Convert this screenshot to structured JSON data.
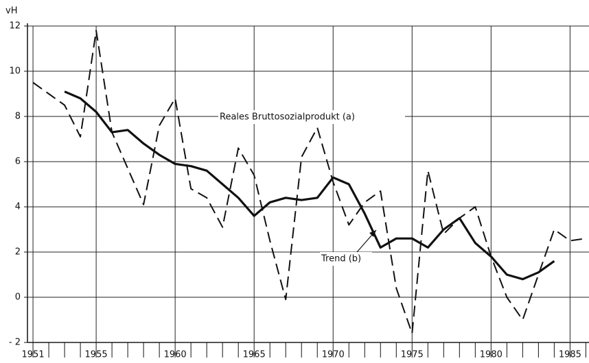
{
  "chart_data": {
    "type": "line",
    "y_label": "vH",
    "x": [
      1951,
      1952,
      1953,
      1954,
      1955,
      1956,
      1957,
      1958,
      1959,
      1960,
      1961,
      1962,
      1963,
      1964,
      1965,
      1966,
      1967,
      1968,
      1969,
      1970,
      1971,
      1972,
      1973,
      1974,
      1975,
      1976,
      1977,
      1978,
      1979,
      1980,
      1981,
      1982,
      1983,
      1984,
      1985,
      1986
    ],
    "series": [
      {
        "name": "Reales Bruttosozialprodukt (a)",
        "color": "#111111",
        "dash": true,
        "values": [
          9.5,
          9.0,
          8.5,
          7.1,
          11.8,
          7.3,
          5.7,
          4.1,
          7.6,
          8.8,
          4.8,
          4.4,
          3.1,
          6.6,
          5.4,
          2.5,
          -0.1,
          6.2,
          7.5,
          5.1,
          3.2,
          4.2,
          4.7,
          0.4,
          -1.6,
          5.6,
          2.8,
          3.5,
          4.0,
          1.8,
          0.0,
          -1.0,
          1.0,
          3.0,
          2.5,
          2.6
        ]
      },
      {
        "name": "Trend (b)",
        "color": "#111111",
        "dash": false,
        "values": [
          null,
          null,
          9.1,
          8.8,
          8.2,
          7.3,
          7.4,
          6.8,
          6.3,
          5.9,
          5.8,
          5.6,
          5.0,
          4.4,
          3.6,
          4.2,
          4.4,
          4.3,
          4.4,
          5.3,
          5.0,
          3.7,
          2.2,
          2.6,
          2.6,
          2.2,
          3.0,
          3.5,
          2.4,
          1.8,
          1.0,
          0.8,
          1.1,
          1.6,
          null,
          null
        ]
      }
    ],
    "xlim": [
      1950.65,
      1986.2
    ],
    "xticks": [
      1951,
      1955,
      1960,
      1965,
      1970,
      1975,
      1980,
      1985
    ],
    "ylim": [
      -2,
      12
    ],
    "yticks": [
      {
        "value": -2,
        "label": "- 2"
      },
      0,
      2,
      4,
      6,
      8,
      10,
      12
    ],
    "grid": true
  }
}
